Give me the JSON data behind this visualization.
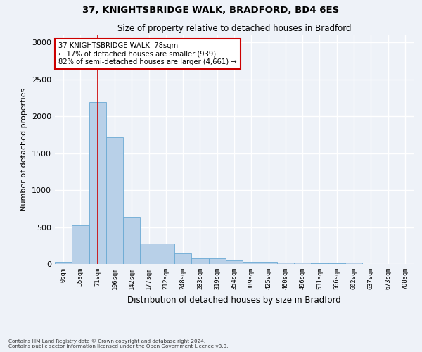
{
  "title_line1": "37, KNIGHTSBRIDGE WALK, BRADFORD, BD4 6ES",
  "title_line2": "Size of property relative to detached houses in Bradford",
  "xlabel": "Distribution of detached houses by size in Bradford",
  "ylabel": "Number of detached properties",
  "footnote": "Contains HM Land Registry data © Crown copyright and database right 2024.\nContains public sector information licensed under the Open Government Licence v3.0.",
  "bar_labels": [
    "0sqm",
    "35sqm",
    "71sqm",
    "106sqm",
    "142sqm",
    "177sqm",
    "212sqm",
    "248sqm",
    "283sqm",
    "319sqm",
    "354sqm",
    "389sqm",
    "425sqm",
    "460sqm",
    "496sqm",
    "531sqm",
    "566sqm",
    "602sqm",
    "637sqm",
    "673sqm",
    "708sqm"
  ],
  "bar_values": [
    25,
    520,
    2190,
    1720,
    640,
    280,
    275,
    145,
    80,
    80,
    45,
    30,
    25,
    20,
    15,
    5,
    5,
    15,
    0,
    0,
    0
  ],
  "bar_color": "#b8d0e8",
  "bar_edge_color": "#6aaad4",
  "ylim": [
    0,
    3100
  ],
  "yticks": [
    0,
    500,
    1000,
    1500,
    2000,
    2500,
    3000
  ],
  "red_line_x": 2,
  "annotation_text": "37 KNIGHTSBRIDGE WALK: 78sqm\n← 17% of detached houses are smaller (939)\n82% of semi-detached houses are larger (4,661) →",
  "annotation_box_color": "#ffffff",
  "annotation_box_edge": "#cc0000",
  "red_line_color": "#cc0000",
  "background_color": "#eef2f8",
  "grid_color": "#ffffff"
}
